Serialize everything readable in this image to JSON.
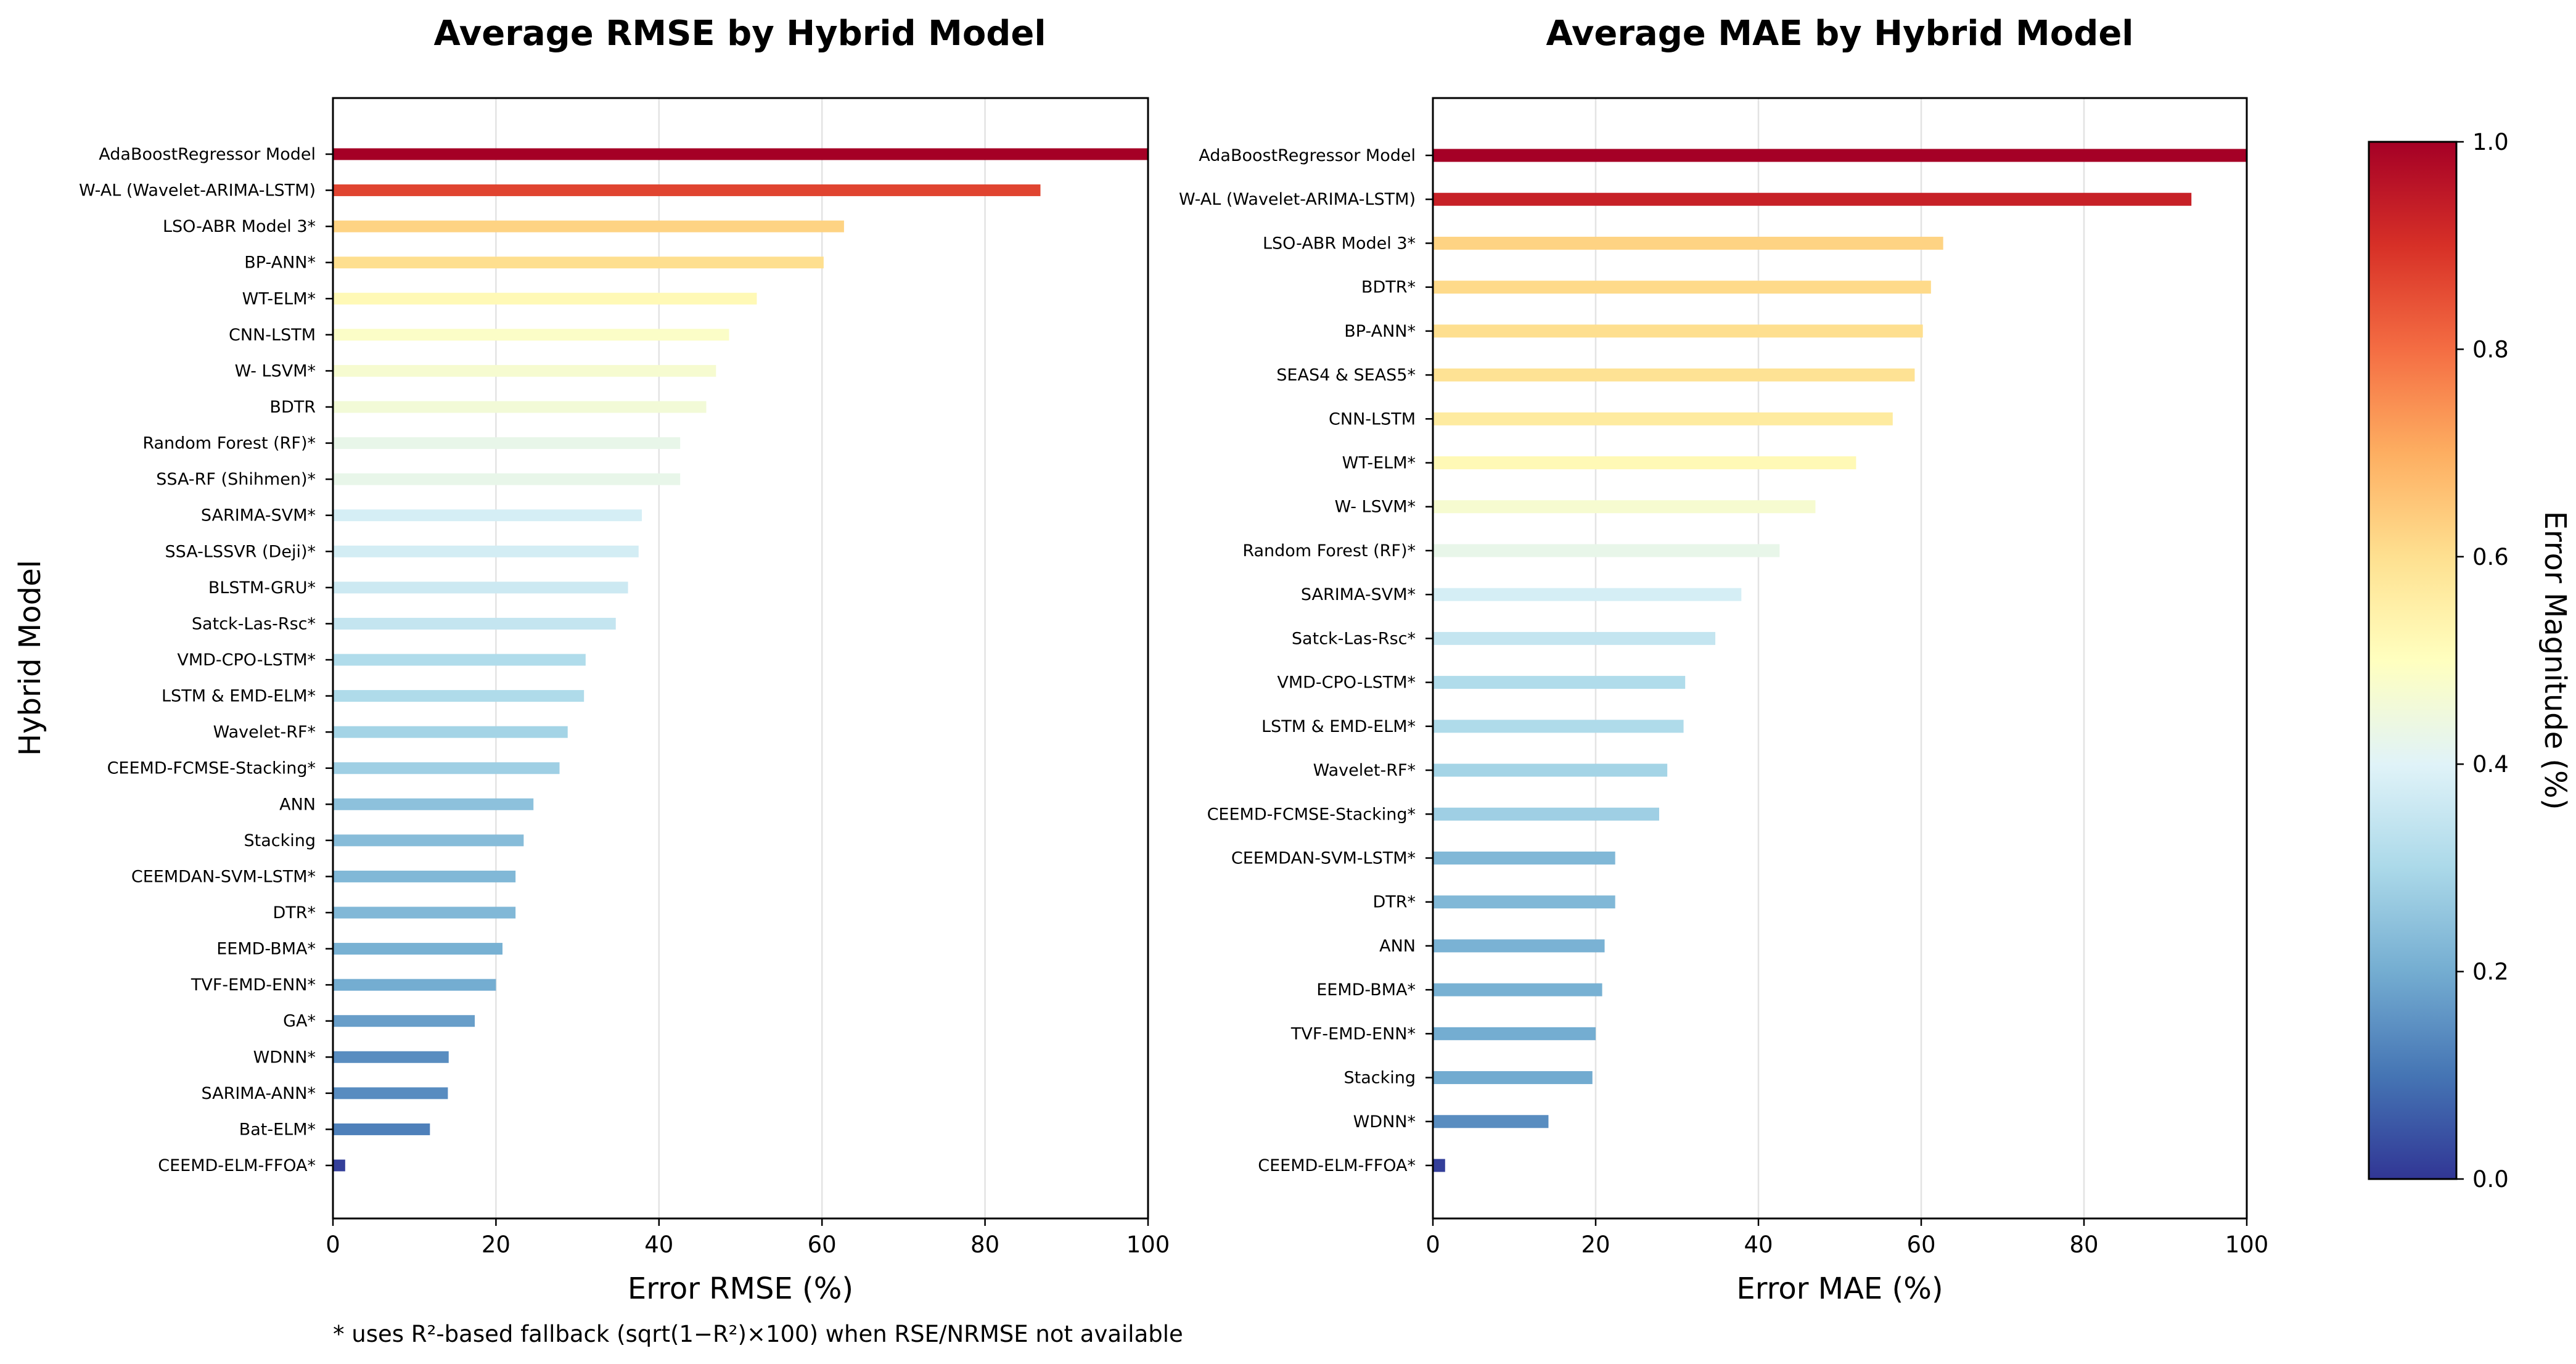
{
  "footnote": "* uses R²-based fallback (sqrt(1−R²)×100) when RSE/NRMSE not available",
  "colorbar": {
    "label": "Error Magnitude (%)",
    "colormap": "RdYlBu_r",
    "range": [
      0,
      1
    ],
    "ticks": [
      0.0,
      0.2,
      0.4,
      0.6,
      0.8,
      1.0
    ],
    "tick_labels": [
      "0.0",
      "0.2",
      "0.4",
      "0.6",
      "0.8",
      "1.0"
    ]
  },
  "chart_data": [
    {
      "type": "bar",
      "orientation": "horizontal",
      "title": "Average RMSE by Hybrid Model",
      "xlabel": "Error RMSE (%)",
      "ylabel": "Hybrid Model",
      "xlim": [
        0,
        100
      ],
      "xticks": [
        0,
        20,
        40,
        60,
        80,
        100
      ],
      "grid": "x",
      "categories": [
        "AdaBoostRegressor Model",
        "W-AL (Wavelet-ARIMA-LSTM)",
        "LSO-ABR Model 3*",
        "BP-ANN*",
        "WT-ELM*",
        "CNN-LSTM",
        "W- LSVM*",
        "BDTR",
        "Random Forest (RF)*",
        "SSA-RF (Shihmen)*",
        "SARIMA-SVM*",
        "SSA-LSSVR (Deji)*",
        "BLSTM-GRU*",
        "Satck-Las-Rsc*",
        "VMD-CPO-LSTM*",
        "LSTM & EMD-ELM*",
        "Wavelet-RF*",
        "CEEMD-FCMSE-Stacking*",
        "ANN",
        "Stacking",
        "CEEMDAN-SVM-LSTM*",
        "DTR*",
        "EEMD-BMA*",
        "TVF-EMD-ENN*",
        "GA*",
        "WDNN*",
        "SARIMA-ANN*",
        "Bat-ELM*",
        "CEEMD-ELM-FFOA*"
      ],
      "values": [
        100.0,
        86.8,
        62.7,
        60.2,
        52.0,
        48.6,
        47.0,
        45.8,
        42.6,
        42.6,
        37.9,
        37.5,
        36.2,
        34.7,
        31.0,
        30.8,
        28.8,
        27.8,
        24.6,
        23.4,
        22.4,
        22.4,
        20.8,
        20.0,
        17.4,
        14.2,
        14.1,
        11.9,
        1.5
      ]
    },
    {
      "type": "bar",
      "orientation": "horizontal",
      "title": "Average MAE by Hybrid Model",
      "xlabel": "Error MAE (%)",
      "ylabel": "",
      "xlim": [
        0,
        100
      ],
      "xticks": [
        0,
        20,
        40,
        60,
        80,
        100
      ],
      "grid": "x",
      "categories": [
        "AdaBoostRegressor Model",
        "W-AL (Wavelet-ARIMA-LSTM)",
        "LSO-ABR Model 3*",
        "BDTR*",
        "BP-ANN*",
        "SEAS4 & SEAS5*",
        "CNN-LSTM",
        "WT-ELM*",
        "W- LSVM*",
        "Random Forest (RF)*",
        "SARIMA-SVM*",
        "Satck-Las-Rsc*",
        "VMD-CPO-LSTM*",
        "LSTM & EMD-ELM*",
        "Wavelet-RF*",
        "CEEMD-FCMSE-Stacking*",
        "CEEMDAN-SVM-LSTM*",
        "DTR*",
        "ANN",
        "EEMD-BMA*",
        "TVF-EMD-ENN*",
        "Stacking",
        "WDNN*",
        "CEEMD-ELM-FFOA*"
      ],
      "values": [
        100.0,
        93.2,
        62.7,
        61.2,
        60.2,
        59.2,
        56.5,
        52.0,
        47.0,
        42.6,
        37.9,
        34.7,
        31.0,
        30.8,
        28.8,
        27.8,
        22.4,
        22.4,
        21.1,
        20.8,
        20.0,
        19.6,
        14.2,
        1.5
      ]
    }
  ]
}
